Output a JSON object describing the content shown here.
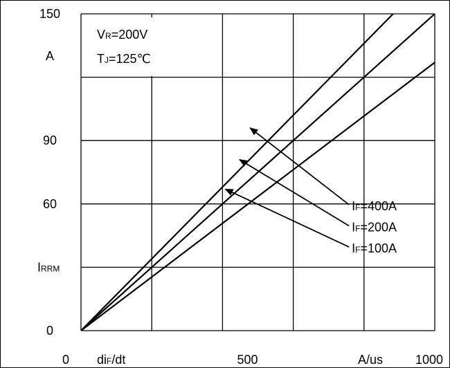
{
  "chart_data": {
    "type": "line",
    "x": [
      0,
      1000
    ],
    "xlim": [
      0,
      1000
    ],
    "ylim": [
      0,
      150
    ],
    "grid": true,
    "xticks": [
      0,
      500,
      1000
    ],
    "yticks": [
      0,
      30,
      60,
      90,
      120,
      150
    ],
    "xtick_labels": [
      "0",
      "500",
      "1000"
    ],
    "xlabel_main": "di",
    "xlabel_sub": "F",
    "xlabel_tail": "/dt",
    "xunit": "A/us",
    "ytick_labels": [
      "0",
      "60",
      "90",
      "150"
    ],
    "ylabel_main": "I",
    "ylabel_sub": "RRM",
    "yunit": "A",
    "conditions": [
      {
        "main": "V",
        "sub": "R",
        "rest": "=200V"
      },
      {
        "main": "T",
        "sub": "J",
        "rest": "=125℃"
      }
    ],
    "series": [
      {
        "main": "I",
        "sub": "F",
        "rest": "=400A",
        "values": [
          0,
          170
        ],
        "color": "#000000"
      },
      {
        "main": "I",
        "sub": "F",
        "rest": "=200A",
        "values": [
          0,
          150
        ],
        "color": "#000000"
      },
      {
        "main": "I",
        "sub": "F",
        "rest": "=100A",
        "values": [
          0,
          127
        ],
        "color": "#000000"
      }
    ],
    "annotations": [
      {
        "series": 0,
        "label_x": 785,
        "label_y": 57,
        "arrow_to_x": 478,
        "arrow_to_y": 96
      },
      {
        "series": 1,
        "label_x": 785,
        "label_y": 47,
        "arrow_to_x": 448,
        "arrow_to_y": 81
      },
      {
        "series": 2,
        "label_x": 785,
        "label_y": 37,
        "arrow_to_x": 408,
        "arrow_to_y": 67
      }
    ]
  }
}
